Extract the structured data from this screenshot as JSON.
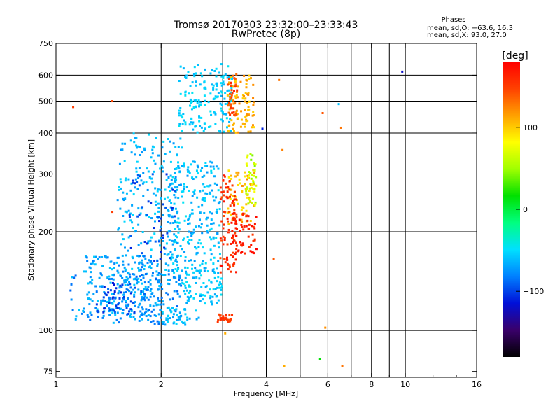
{
  "chart_data": {
    "type": "scatter",
    "title": "Tromsø 20170303 23:32:00–23:33:43",
    "subtitle": "RwPretec (8p)",
    "xlabel": "Frequency [MHz]",
    "ylabel": "Stationary phase Virtual Height [km]",
    "x_scale": "log",
    "y_scale": "log",
    "xlim": [
      1,
      16
    ],
    "ylim": [
      72,
      750
    ],
    "x_ticks": [
      {
        "value": 1,
        "label": "1"
      },
      {
        "value": 2,
        "label": "2"
      },
      {
        "value": 4,
        "label": "4"
      },
      {
        "value": 6,
        "label": "6"
      },
      {
        "value": 8,
        "label": "8"
      },
      {
        "value": 10,
        "label": "10"
      },
      {
        "value": 16,
        "label": "16"
      }
    ],
    "y_ticks": [
      {
        "value": 75,
        "label": "75"
      },
      {
        "value": 100,
        "label": "100"
      },
      {
        "value": 200,
        "label": "200"
      },
      {
        "value": 300,
        "label": "300"
      },
      {
        "value": 400,
        "label": "400"
      },
      {
        "value": 500,
        "label": "500"
      },
      {
        "value": 600,
        "label": "600"
      },
      {
        "value": 750,
        "label": "750"
      }
    ],
    "grid_x": [
      2,
      3,
      4,
      5,
      6,
      7,
      8,
      9,
      10
    ],
    "grid_y": [
      100,
      200,
      300,
      400,
      500,
      600
    ],
    "grid": true,
    "phases_box": {
      "title": "Phases",
      "line1": "mean, sd,O: −63.6, 16.3",
      "line2": "mean, sd,X:  93.0, 27.0"
    },
    "colorbar": {
      "label": "[deg]",
      "range": [
        -180,
        180
      ],
      "ticks": [
        {
          "value": 100,
          "label": "100"
        },
        {
          "value": 0,
          "label": "0"
        },
        {
          "value": -100,
          "label": "−100"
        }
      ],
      "colors": [
        "#000000",
        "#3a006a",
        "#0010d8",
        "#0080ff",
        "#00e0ff",
        "#00ff80",
        "#00e000",
        "#a0ff00",
        "#ffff00",
        "#ffa000",
        "#ff4000",
        "#ff0000"
      ]
    },
    "series": [
      {
        "clusters": [
          {
            "x": [
              2.25,
              3.2
            ],
            "y": [
              400,
              650
            ],
            "phase": [
              -65,
              -45
            ],
            "n": 170
          },
          {
            "x": [
              1.5,
              2.3
            ],
            "y": [
              150,
              400
            ],
            "phase": [
              -75,
              -50
            ],
            "n": 220
          },
          {
            "x": [
              2.1,
              2.95
            ],
            "y": [
              150,
              330
            ],
            "phase": [
              -75,
              -45
            ],
            "n": 260
          },
          {
            "x": [
              1.2,
              2.0
            ],
            "y": [
              110,
              170
            ],
            "phase": [
              -85,
              -55
            ],
            "n": 190
          },
          {
            "x": [
              1.5,
              2.3
            ],
            "y": [
              104,
              150
            ],
            "phase": [
              -90,
              -60
            ],
            "n": 140
          },
          {
            "x": [
              1.1,
              1.6
            ],
            "y": [
              104,
              150
            ],
            "phase": [
              -90,
              -55
            ],
            "n": 60
          },
          {
            "x": [
              2.0,
              2.6
            ],
            "y": [
              104,
              118
            ],
            "phase": [
              -70,
              -50
            ],
            "n": 40
          },
          {
            "x": [
              2.3,
              3.0
            ],
            "y": [
              120,
              150
            ],
            "phase": [
              -70,
              -45
            ],
            "n": 80
          },
          {
            "x": [
              1.6,
              2.2
            ],
            "y": [
              160,
              300
            ],
            "phase": [
              -110,
              -90
            ],
            "n": 45
          },
          {
            "x": [
              1.3,
              1.7
            ],
            "y": [
              112,
              140
            ],
            "phase": [
              -115,
              -95
            ],
            "n": 40
          }
        ]
      },
      {
        "clusters": [
          {
            "x": [
              3.1,
              3.7
            ],
            "y": [
              400,
              600
            ],
            "phase": [
              95,
              125
            ],
            "n": 90
          },
          {
            "x": [
              3.1,
              3.3
            ],
            "y": [
              450,
              620
            ],
            "phase": [
              130,
              160
            ],
            "n": 40
          },
          {
            "x": [
              3.1,
              3.7
            ],
            "y": [
              210,
              310
            ],
            "phase": [
              85,
              125
            ],
            "n": 70
          },
          {
            "x": [
              2.95,
              3.3
            ],
            "y": [
              150,
              300
            ],
            "phase": [
              140,
              175
            ],
            "n": 90
          },
          {
            "x": [
              3.2,
              3.75
            ],
            "y": [
              170,
              230
            ],
            "phase": [
              150,
              178
            ],
            "n": 60
          },
          {
            "x": [
              2.9,
              3.2
            ],
            "y": [
              106,
              112
            ],
            "phase": [
              140,
              160
            ],
            "n": 25
          },
          {
            "x": [
              3.5,
              3.75
            ],
            "y": [
              240,
              350
            ],
            "phase": [
              40,
              80
            ],
            "n": 40
          }
        ]
      },
      {
        "points": [
          {
            "x": 1.12,
            "y": 480,
            "phase": 150
          },
          {
            "x": 1.45,
            "y": 500,
            "phase": 145
          },
          {
            "x": 1.45,
            "y": 230,
            "phase": 150
          },
          {
            "x": 4.35,
            "y": 580,
            "phase": 130
          },
          {
            "x": 5.8,
            "y": 460,
            "phase": 140
          },
          {
            "x": 6.55,
            "y": 415,
            "phase": 130
          },
          {
            "x": 6.45,
            "y": 490,
            "phase": -60
          },
          {
            "x": 4.45,
            "y": 355,
            "phase": 125
          },
          {
            "x": 4.2,
            "y": 165,
            "phase": 140
          },
          {
            "x": 5.9,
            "y": 102,
            "phase": 120
          },
          {
            "x": 5.7,
            "y": 82,
            "phase": 15
          },
          {
            "x": 6.6,
            "y": 78,
            "phase": 130
          },
          {
            "x": 4.5,
            "y": 78,
            "phase": 110
          },
          {
            "x": 9.8,
            "y": 615,
            "phase": -120
          },
          {
            "x": 3.05,
            "y": 98,
            "phase": 110
          },
          {
            "x": 3.9,
            "y": 412,
            "phase": -110
          }
        ]
      }
    ]
  }
}
